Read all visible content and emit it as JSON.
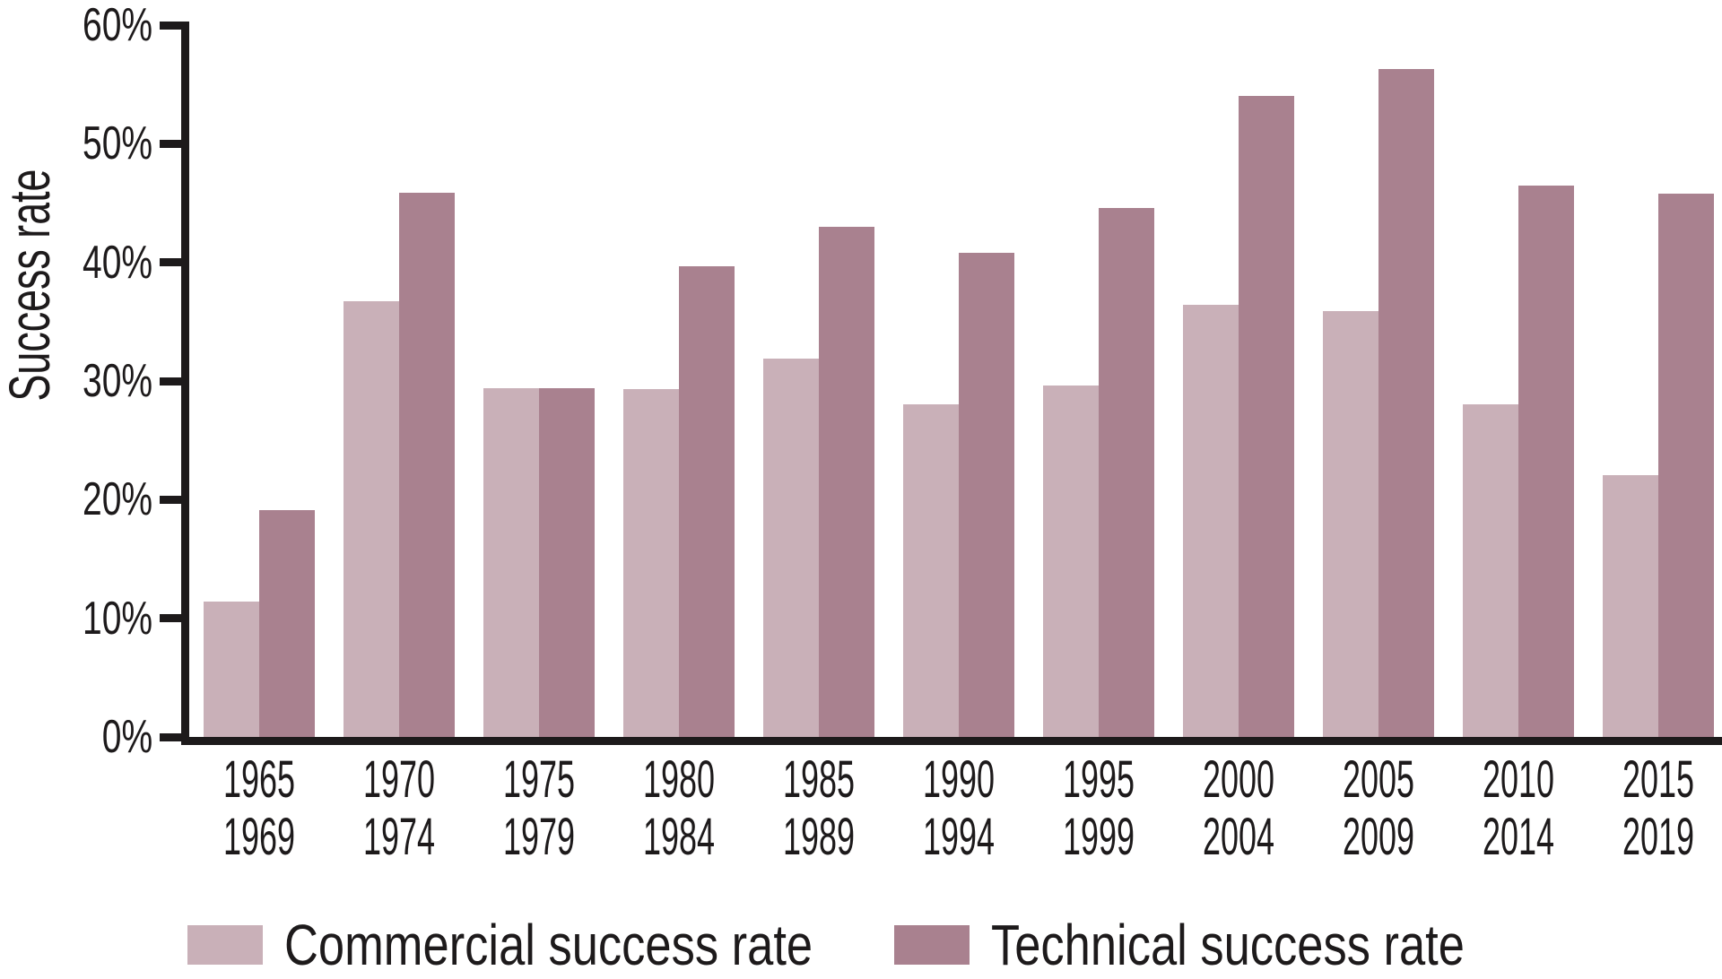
{
  "chart_data": {
    "type": "bar",
    "title": "",
    "ylabel": "Success rate",
    "xlabel": "",
    "ylim": [
      0,
      60
    ],
    "ytick_step": 10,
    "ytick_labels": [
      "0%",
      "10%",
      "20%",
      "30%",
      "40%",
      "50%",
      "60%"
    ],
    "grid": false,
    "legend_position": "bottom",
    "axis_color": "#1d1a1b",
    "categories": [
      [
        "1965",
        "1969"
      ],
      [
        "1970",
        "1974"
      ],
      [
        "1975",
        "1979"
      ],
      [
        "1980",
        "1984"
      ],
      [
        "1985",
        "1989"
      ],
      [
        "1990",
        "1994"
      ],
      [
        "1995",
        "1999"
      ],
      [
        "2000",
        "2004"
      ],
      [
        "2005",
        "2009"
      ],
      [
        "2010",
        "2014"
      ],
      [
        "2015",
        "2019"
      ]
    ],
    "series": [
      {
        "name": "Commercial success rate",
        "color": "#c9b0b8",
        "values": [
          11.4,
          36.7,
          29.4,
          29.3,
          31.9,
          28.0,
          29.6,
          36.4,
          35.9,
          28.0,
          22.1
        ]
      },
      {
        "name": "Technical success rate",
        "color": "#a9818f",
        "values": [
          19.1,
          45.9,
          29.4,
          39.7,
          43.0,
          40.8,
          44.6,
          54.0,
          56.3,
          46.5,
          45.8
        ]
      }
    ]
  }
}
